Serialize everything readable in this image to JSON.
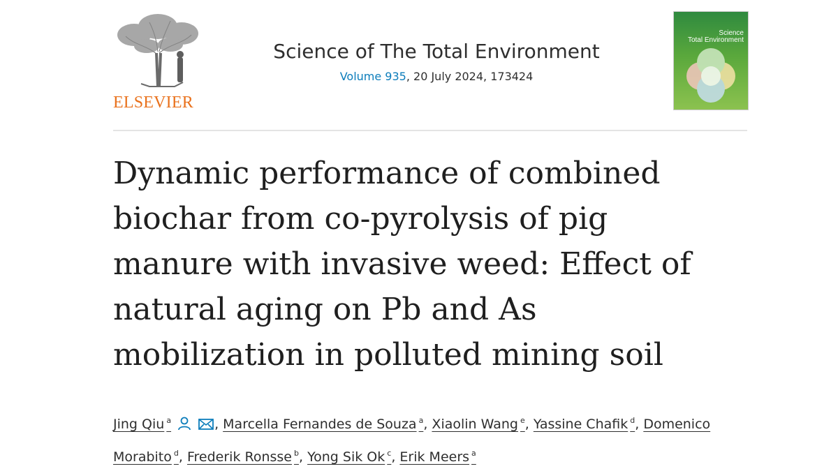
{
  "header": {
    "publisher": "ELSEVIER",
    "journal_name": "Science of The Total Environment",
    "volume_link": "Volume 935",
    "issue_rest": ", 20 July 2024, 173424",
    "cover_title_line1": "Science",
    "cover_title_line2": "Total Environment"
  },
  "article": {
    "title_lines": [
      "Dynamic performance of combined",
      "biochar from co-pyrolysis of pig",
      "manure with invasive weed: Effect of",
      "natural aging on Pb and As",
      "mobilization in polluted mining soil"
    ]
  },
  "authors": [
    {
      "name": "Jing Qiu",
      "aff": "a"
    },
    {
      "name": "Marcella Fernandes de Souza",
      "aff": "a"
    },
    {
      "name": "Xiaolin Wang",
      "aff": "e"
    },
    {
      "name": "Yassine Chafik",
      "aff": "d"
    },
    {
      "name": "Domenico Morabito",
      "aff": "d"
    },
    {
      "name": "Frederik Ronsse",
      "aff": "b"
    },
    {
      "name": "Yong Sik Ok",
      "aff": "c"
    },
    {
      "name": "Erik Meers",
      "aff": "a"
    }
  ],
  "colors": {
    "accent": "#0c7dbb",
    "publisher": "#e9711c",
    "text": "#1f1f1f"
  },
  "icons": {
    "author_profile": "person-icon",
    "author_email": "envelope-icon"
  }
}
